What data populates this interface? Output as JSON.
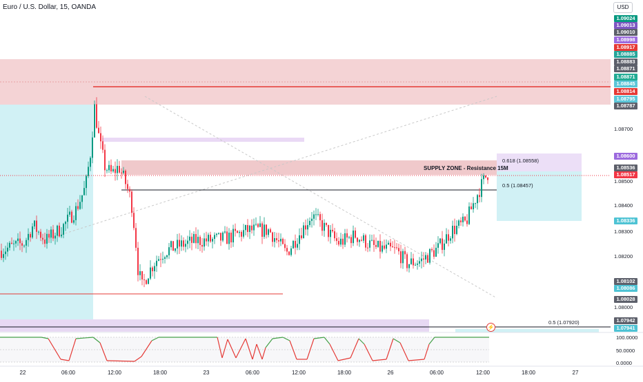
{
  "header": {
    "symbol_title": "Euro / U.S. Dollar, 15, OANDA",
    "currency_button": "USD"
  },
  "colors": {
    "bull": "#089981",
    "bear": "#f23645",
    "supply_zone": "#f0c9cb",
    "support_zone": "#d1f1f5",
    "purple_zone": "#e7d9f3",
    "resistance_line": "#e53935",
    "oscillator_up": "#43a047",
    "oscillator_down": "#e53935"
  },
  "price_axis": {
    "tags": [
      {
        "label": "1.09024",
        "color": "#089981"
      },
      {
        "label": "1.09013",
        "color": "#7e57c2"
      },
      {
        "label": "1.09010",
        "color": "#5d606b"
      },
      {
        "label": "1.08998",
        "color": "#9c6ade"
      },
      {
        "label": "1.08917",
        "color": "#e53935"
      },
      {
        "label": "1.08885",
        "color": "#26a69a"
      },
      {
        "label": "1.08883",
        "color": "#5d606b"
      },
      {
        "label": "1.08871",
        "color": "#5d606b"
      },
      {
        "label": "1.08871",
        "color": "#22ab94"
      },
      {
        "label": "1.08845",
        "color": "#5cc6d8"
      },
      {
        "label": "1.08814",
        "color": "#e53935"
      },
      {
        "label": "1.08795",
        "color": "#5cc6d8"
      },
      {
        "label": "1.08787",
        "color": "#5d606b"
      },
      {
        "label": "1.08600",
        "color": "#9c6ade"
      },
      {
        "label": "1.08536",
        "color": "#5d606b"
      },
      {
        "label": "1.08517",
        "color": "#f23645"
      },
      {
        "label": "1.08336",
        "color": "#4ec3d4"
      },
      {
        "label": "1.08102",
        "color": "#5d606b"
      },
      {
        "label": "1.08086",
        "color": "#4ec3d4"
      },
      {
        "label": "1.08028",
        "color": "#5d606b"
      },
      {
        "label": "1.07942",
        "color": "#5d606b"
      },
      {
        "label": "1.07941",
        "color": "#4ec3d4"
      }
    ],
    "ticks": [
      "1.08700",
      "1.08500",
      "1.08400",
      "1.08300",
      "1.08200",
      "1.08000"
    ]
  },
  "drawings": {
    "supply_zone_label": "SUPPLY ZONE - Resistance 15M",
    "fib_0618": "0.618 (1.08558)",
    "fib_05": "0.5 (1.08457)",
    "fib_05_lower": "0.5 (1.07920)"
  },
  "indicator": {
    "levels": [
      "100.0000",
      "50.0000",
      "0.0000"
    ]
  },
  "time_axis": [
    "22",
    "06:00",
    "12:00",
    "18:00",
    "23",
    "06:00",
    "12:00",
    "18:00",
    "26",
    "06:00",
    "12:00",
    "18:00",
    "27"
  ],
  "chart_data": {
    "type": "candlestick",
    "title": "Euro / U.S. Dollar, 15, OANDA",
    "y_axis_ticks": [
      1.087,
      1.085,
      1.084,
      1.083,
      1.082,
      1.08
    ],
    "ylim": [
      1.0794,
      1.0905
    ],
    "x_axis_ticks": [
      "22",
      "06:00",
      "12:00",
      "18:00",
      "23",
      "06:00",
      "12:00",
      "18:00",
      "26",
      "06:00",
      "12:00",
      "18:00",
      "27"
    ],
    "close_path": [
      [
        0,
        1.0822
      ],
      [
        35,
        1.0825
      ],
      [
        48,
        1.0832
      ],
      [
        66,
        1.0826
      ],
      [
        90,
        1.0831
      ],
      [
        110,
        1.0838
      ],
      [
        124,
        1.0847
      ],
      [
        131,
        1.086
      ],
      [
        137,
        1.0878
      ],
      [
        144,
        1.0865
      ],
      [
        152,
        1.0855
      ],
      [
        162,
        1.0852
      ],
      [
        172,
        1.0855
      ],
      [
        180,
        1.085
      ],
      [
        190,
        1.0842
      ],
      [
        196,
        1.0828
      ],
      [
        200,
        1.0815
      ],
      [
        206,
        1.0808
      ],
      [
        214,
        1.0813
      ],
      [
        225,
        1.0818
      ],
      [
        240,
        1.0822
      ],
      [
        260,
        1.0824
      ],
      [
        285,
        1.0826
      ],
      [
        305,
        1.0826
      ],
      [
        330,
        1.0827
      ],
      [
        360,
        1.083
      ],
      [
        390,
        1.083
      ],
      [
        415,
        1.0821
      ],
      [
        435,
        1.0829
      ],
      [
        452,
        1.0836
      ],
      [
        470,
        1.0831
      ],
      [
        490,
        1.0825
      ],
      [
        515,
        1.0828
      ],
      [
        545,
        1.0823
      ],
      [
        575,
        1.0822
      ],
      [
        590,
        1.0817
      ],
      [
        610,
        1.0818
      ],
      [
        635,
        1.0823
      ],
      [
        655,
        1.083
      ],
      [
        675,
        1.0833
      ],
      [
        690,
        1.0843
      ],
      [
        702,
        1.085
      ],
      [
        709,
        1.0853
      ]
    ],
    "annotations": {
      "supply_zone": [
        1.08517,
        1.08558
      ],
      "resistance_line": 1.08814,
      "fib_0618": 1.08558,
      "fib_05": 1.08457,
      "fib_05_lower": 1.0792
    }
  }
}
